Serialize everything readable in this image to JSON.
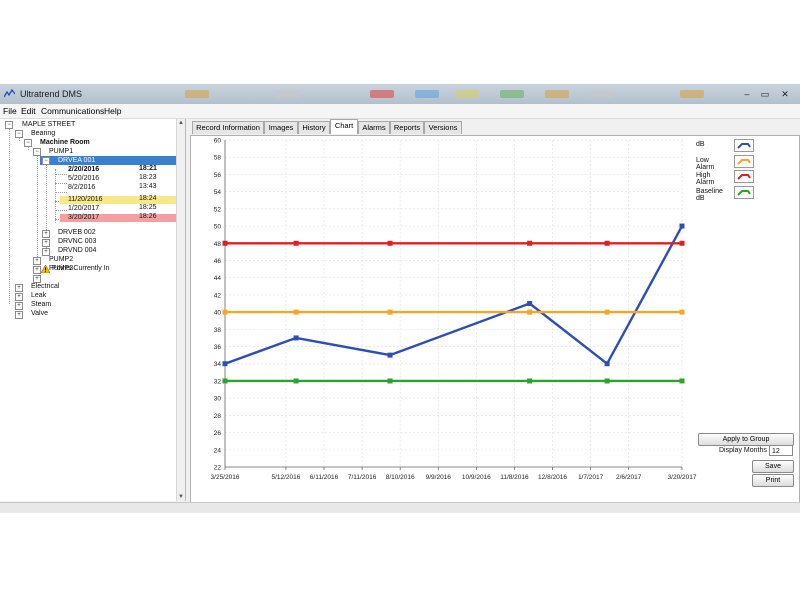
{
  "window": {
    "title": "Ultratrend DMS",
    "controls": [
      "–",
      "▭",
      "✕"
    ]
  },
  "menu": [
    "File",
    "Edit",
    "Communications",
    "Help"
  ],
  "tree": {
    "nodes": [
      {
        "label": "MAPLE STREET",
        "bold": false
      },
      {
        "label": "Bearing",
        "bold": false
      },
      {
        "label": "Machine Room",
        "bold": true
      },
      {
        "label": "PUMP1",
        "bold": false
      },
      {
        "label": "DRVEA 001",
        "bold": false,
        "selected": true
      },
      {
        "label": "2/20/2016",
        "time": "18:21",
        "bold": true
      },
      {
        "label": "5/20/2016",
        "time": "18:23",
        "bold": false
      },
      {
        "label": "8/2/2016",
        "time": "13:43",
        "bold": false
      },
      {
        "label": "11/20/2016",
        "time": "18:24",
        "bold": false,
        "highlight": "yellow"
      },
      {
        "label": "1/20/2017",
        "time": "18:25",
        "bold": false
      },
      {
        "label": "3/20/2017",
        "time": "18:26",
        "bold": false,
        "highlight": "red"
      },
      {
        "label": "DRVEB 002",
        "bold": false
      },
      {
        "label": "DRVNC 003",
        "bold": false
      },
      {
        "label": "DRVND 004",
        "bold": false
      },
      {
        "label": "PUMP2",
        "bold": false
      },
      {
        "label": "PUMP3",
        "bold": false
      },
      {
        "label": "Points Currently In",
        "bold": false,
        "warning": true
      },
      {
        "label": "Electrical",
        "bold": false
      },
      {
        "label": "Leak",
        "bold": false
      },
      {
        "label": "Steam",
        "bold": false
      },
      {
        "label": "Valve",
        "bold": false
      }
    ]
  },
  "tabs": [
    {
      "label": "Record Information",
      "active": false
    },
    {
      "label": "Images",
      "active": false
    },
    {
      "label": "History",
      "active": false
    },
    {
      "label": "Chart",
      "active": true
    },
    {
      "label": "Alarms",
      "active": false
    },
    {
      "label": "Reports",
      "active": false
    },
    {
      "label": "Versions",
      "active": false
    }
  ],
  "legend": [
    {
      "label": "dB",
      "color": "#2d4fb4"
    },
    {
      "label": "Low Alarm",
      "color": "#f5a623"
    },
    {
      "label": "High Alarm",
      "color": "#e02020"
    },
    {
      "label": "Baseline dB",
      "color": "#2aa52a"
    }
  ],
  "controls": {
    "apply_label": "Apply to Group",
    "months_label": "Display Months",
    "months_value": "12",
    "save_label": "Save",
    "print_label": "Print"
  },
  "chart_data": {
    "type": "line",
    "x_ticks": [
      "3/25/2016",
      "5/12/2016",
      "6/11/2016",
      "7/11/2016",
      "8/10/2016",
      "9/9/2016",
      "10/9/2016",
      "11/8/2016",
      "12/8/2016",
      "1/7/2017",
      "2/6/2017",
      "3/20/2017"
    ],
    "ylim": [
      22,
      60
    ],
    "y_ticks": [
      22,
      24,
      26,
      28,
      30,
      32,
      34,
      36,
      38,
      40,
      42,
      44,
      46,
      48,
      50,
      52,
      54,
      56,
      58,
      60
    ],
    "grid": true,
    "legend_position": "top-right",
    "series": [
      {
        "name": "dB",
        "color": "#2d4fb4",
        "x": [
          "3/25/2016",
          "5/20/2016",
          "8/2/2016",
          "11/20/2016",
          "1/20/2017",
          "3/20/2017"
        ],
        "y": [
          34,
          37,
          35,
          41,
          34,
          50
        ]
      },
      {
        "name": "Low Alarm",
        "color": "#f5a623",
        "x": [
          "3/25/2016",
          "5/20/2016",
          "8/2/2016",
          "11/20/2016",
          "1/20/2017",
          "3/20/2017"
        ],
        "y": [
          40,
          40,
          40,
          40,
          40,
          40
        ]
      },
      {
        "name": "High Alarm",
        "color": "#e02020",
        "x": [
          "3/25/2016",
          "5/20/2016",
          "8/2/2016",
          "11/20/2016",
          "1/20/2017",
          "3/20/2017"
        ],
        "y": [
          48,
          48,
          48,
          48,
          48,
          48
        ]
      },
      {
        "name": "Baseline dB",
        "color": "#2aa52a",
        "x": [
          "3/25/2016",
          "5/20/2016",
          "8/2/2016",
          "11/20/2016",
          "1/20/2017",
          "3/20/2017"
        ],
        "y": [
          32,
          32,
          32,
          32,
          32,
          32
        ]
      }
    ]
  }
}
